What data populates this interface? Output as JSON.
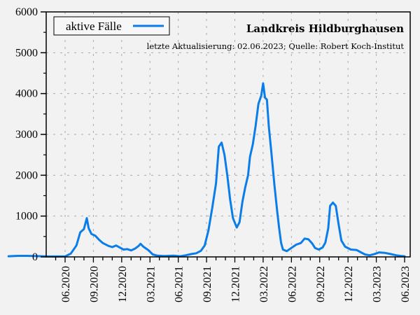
{
  "chart_data": {
    "type": "line",
    "title": "Landkreis Hildburghausen",
    "subtitle": "letzte Aktualisierung: 02.06.2023; Quelle: Robert Koch-Institut",
    "xlabel": "",
    "ylabel": "",
    "ylim": [
      0,
      6000
    ],
    "yticks": [
      0,
      1000,
      2000,
      3000,
      4000,
      5000,
      6000
    ],
    "xticks": [
      "06.2020",
      "09.2020",
      "12.2020",
      "03.2021",
      "06.2021",
      "09.2021",
      "12.2021",
      "03.2022",
      "06.2022",
      "09.2022",
      "12.2022",
      "03.2023",
      "06.2023"
    ],
    "grid": true,
    "legend_position": "top-left",
    "color": "#0a7de8",
    "series": [
      {
        "name": "aktive Fälle",
        "x": [
          "05.2020",
          "06.2020",
          "07.2020",
          "08.2020",
          "09.2020",
          "10.2020",
          "11.2020",
          "12.2020",
          "12.2020b",
          "01.2021",
          "02.2021",
          "03.2021",
          "04.2021",
          "05.2021",
          "06.2021",
          "07.2021",
          "08.2021",
          "09.2021",
          "10.2021",
          "11.2021",
          "11.2021b",
          "12.2021",
          "12.2021b",
          "01.2022",
          "01.2022b",
          "02.2022",
          "03.2022",
          "03.2022b",
          "04.2022",
          "05.2022",
          "06.2022",
          "07.2022",
          "08.2022",
          "09.2022",
          "10.2022",
          "10.2022b",
          "11.2022",
          "12.2022",
          "01.2023",
          "02.2023",
          "03.2023",
          "04.2023",
          "05.2023",
          "06.2023"
        ],
        "values": [
          20,
          30,
          25,
          15,
          10,
          20,
          200,
          650,
          950,
          550,
          350,
          250,
          170,
          280,
          100,
          40,
          20,
          60,
          150,
          500,
          1300,
          2700,
          2800,
          1800,
          700,
          1800,
          2900,
          4200,
          2500,
          600,
          150,
          300,
          450,
          200,
          300,
          1300,
          600,
          200,
          150,
          50,
          100,
          80,
          40,
          20
        ]
      }
    ]
  },
  "legend": {
    "label": "aktive Fälle"
  },
  "header": {
    "title": "Landkreis Hildburghausen",
    "subtitle": "letzte Aktualisierung: 02.06.2023; Quelle: Robert Koch-Institut"
  },
  "axes": {
    "y_labels": [
      "0",
      "1000",
      "2000",
      "3000",
      "4000",
      "5000",
      "6000"
    ],
    "x_labels": [
      "06.2020",
      "09.2020",
      "12.2020",
      "03.2021",
      "06.2021",
      "09.2021",
      "12.2021",
      "03.2022",
      "06.2022",
      "09.2022",
      "12.2022",
      "03.2023",
      "06.2023"
    ]
  }
}
